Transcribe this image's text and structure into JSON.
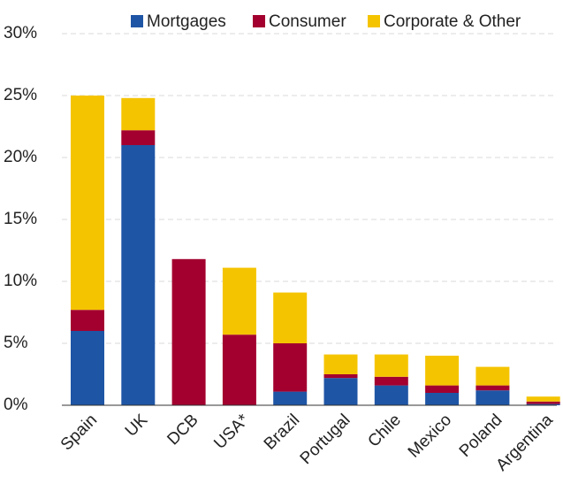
{
  "chart_data": {
    "type": "stacked_bar",
    "categories": [
      "Spain",
      "UK",
      "DCB",
      "USA*",
      "Brazil",
      "Portugal",
      "Chile",
      "Mexico",
      "Poland",
      "Argentina"
    ],
    "series": [
      {
        "name": "Mortgages",
        "color": "#1f55a5",
        "values": [
          6.0,
          21.0,
          0,
          0,
          1.1,
          2.2,
          1.6,
          1.0,
          1.2,
          0.1
        ]
      },
      {
        "name": "Consumer",
        "color": "#a3002f",
        "values": [
          1.7,
          1.2,
          11.8,
          5.7,
          3.9,
          0.3,
          0.7,
          0.6,
          0.4,
          0.2
        ]
      },
      {
        "name": "Corporate & Other",
        "color": "#f5c400",
        "values": [
          17.3,
          2.6,
          0,
          5.4,
          4.1,
          1.6,
          1.8,
          2.4,
          1.5,
          0.4
        ]
      }
    ],
    "ylim": [
      0,
      30
    ],
    "yticks": [
      {
        "value": 0,
        "label": "0%"
      },
      {
        "value": 5,
        "label": "5%"
      },
      {
        "value": 10,
        "label": "10%"
      },
      {
        "value": 15,
        "label": "15%"
      },
      {
        "value": 20,
        "label": "20%"
      },
      {
        "value": 25,
        "label": "25%"
      },
      {
        "value": 30,
        "label": "30%"
      }
    ],
    "grid": true
  }
}
